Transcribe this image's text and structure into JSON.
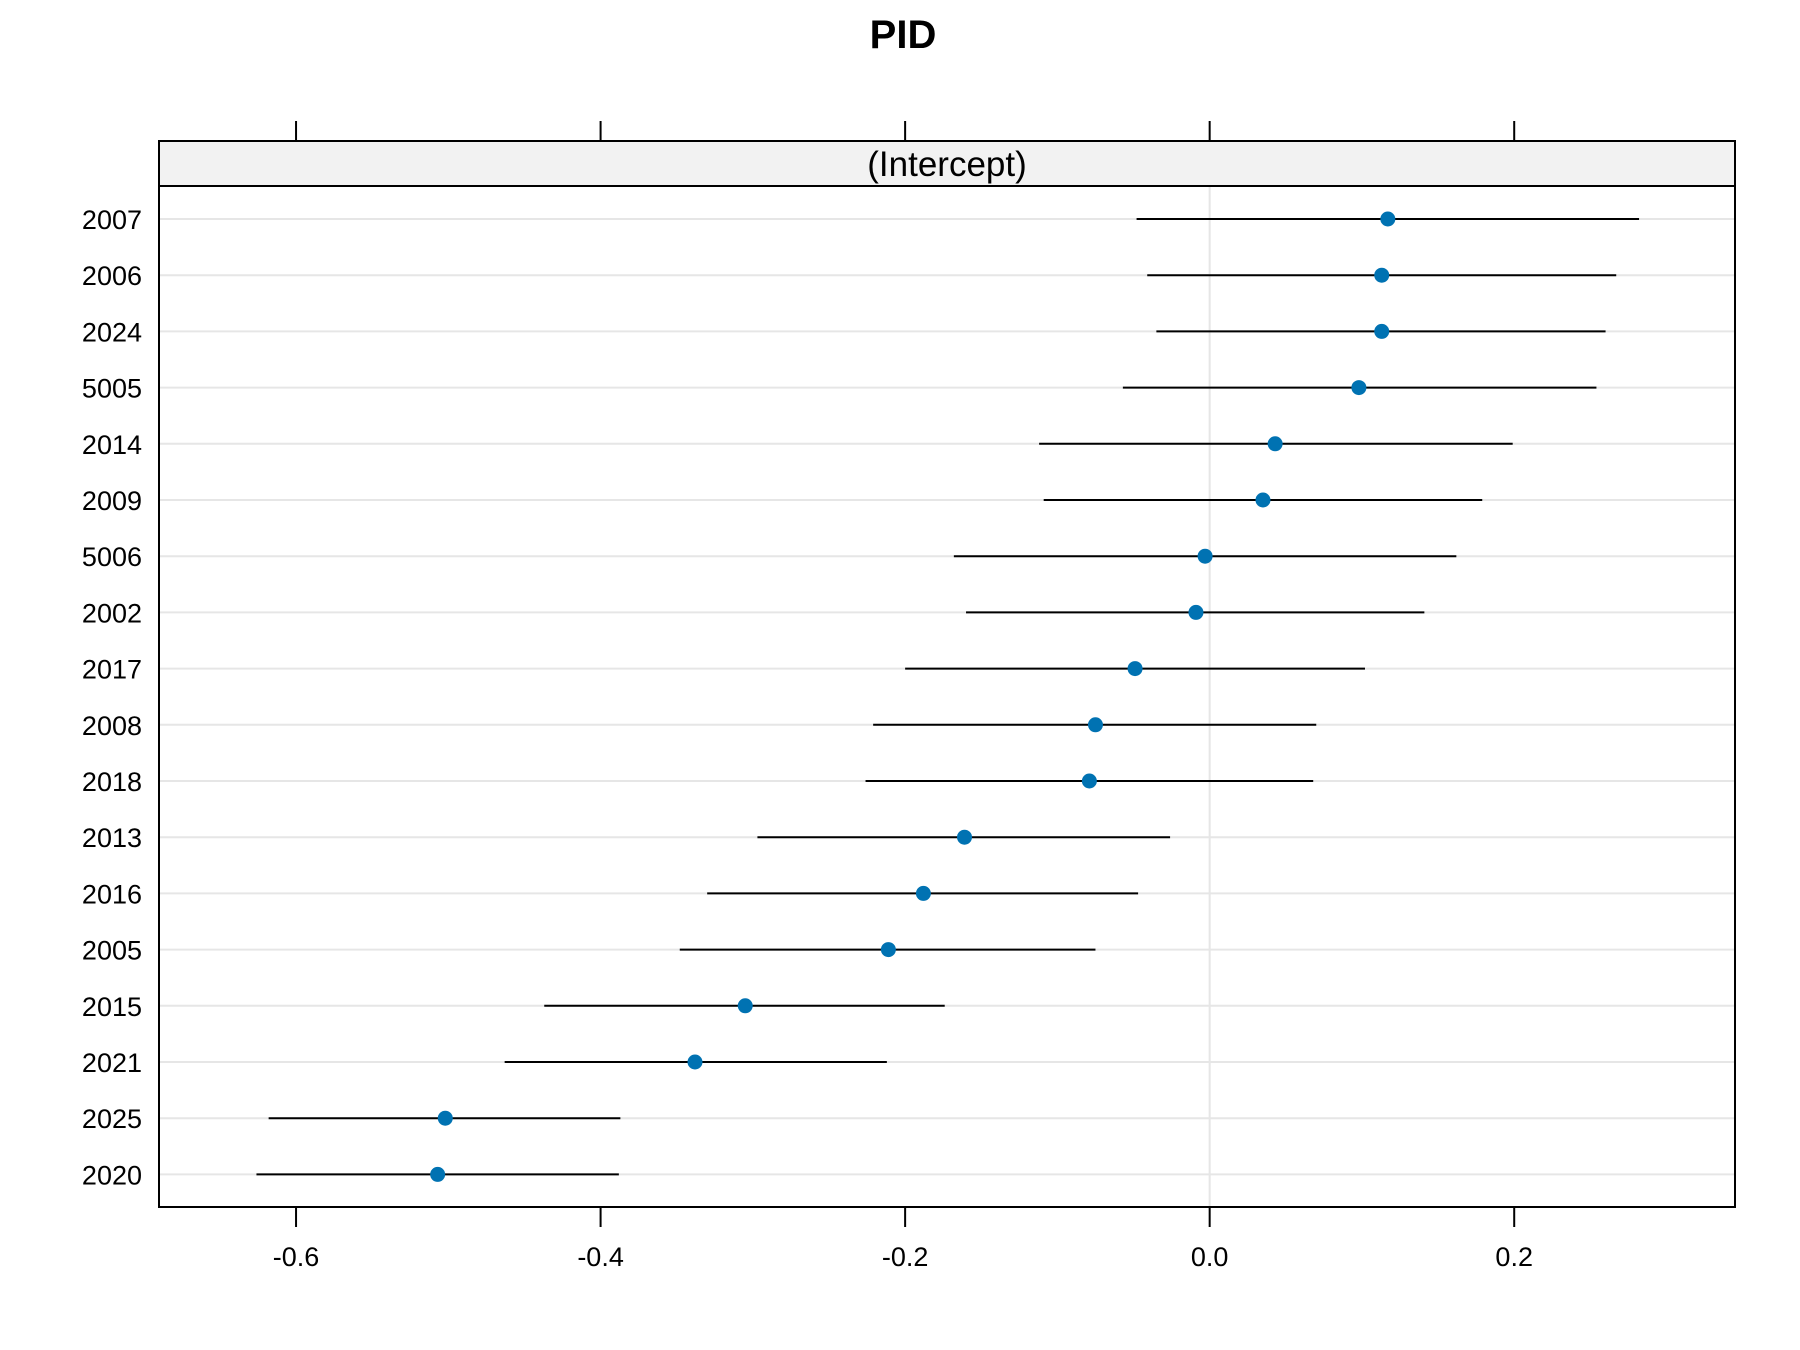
{
  "chart_data": {
    "type": "dotplot",
    "title": "PID",
    "strip_label": "(Intercept)",
    "xlim": [
      -0.69,
      0.345
    ],
    "x_ticks": [
      -0.6,
      -0.4,
      -0.2,
      0.0,
      0.2
    ],
    "x_tick_labels": [
      "-0.6",
      "-0.4",
      "-0.2",
      "0.0",
      "0.2"
    ],
    "reference_line_x": 0.0,
    "colors": {
      "point": "#0072b2",
      "line": "#000000",
      "grid": "#e6e6e6",
      "strip": "#f2f2f2"
    },
    "categories": [
      "2007",
      "2006",
      "2024",
      "5005",
      "2014",
      "2009",
      "5006",
      "2002",
      "2017",
      "2008",
      "2018",
      "2013",
      "2016",
      "2005",
      "2015",
      "2021",
      "2025",
      "2020"
    ],
    "series": [
      {
        "values": [
          0.117,
          0.113,
          0.113,
          0.098,
          0.043,
          0.035,
          -0.003,
          -0.009,
          -0.049,
          -0.075,
          -0.079,
          -0.161,
          -0.188,
          -0.211,
          -0.305,
          -0.338,
          -0.502,
          -0.507
        ],
        "lower": [
          -0.048,
          -0.041,
          -0.035,
          -0.057,
          -0.112,
          -0.109,
          -0.168,
          -0.16,
          -0.2,
          -0.221,
          -0.226,
          -0.297,
          -0.33,
          -0.348,
          -0.437,
          -0.463,
          -0.618,
          -0.626
        ],
        "upper": [
          0.282,
          0.267,
          0.26,
          0.254,
          0.199,
          0.179,
          0.162,
          0.141,
          0.102,
          0.07,
          0.068,
          -0.026,
          -0.047,
          -0.075,
          -0.174,
          -0.212,
          -0.387,
          -0.388
        ]
      }
    ]
  }
}
